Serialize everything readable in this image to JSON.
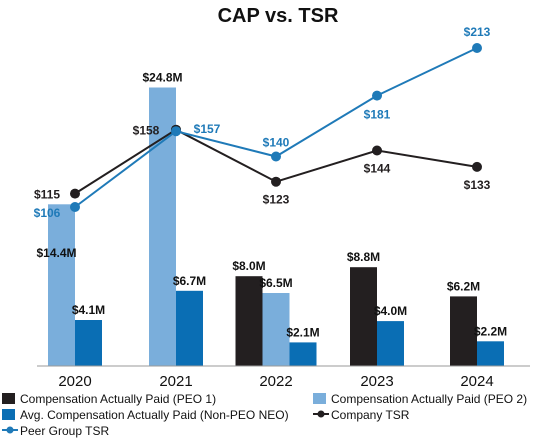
{
  "chart_data": {
    "type": "bar",
    "title": "CAP vs. TSR",
    "categories": [
      "2020",
      "2021",
      "2022",
      "2023",
      "2024"
    ],
    "bar_axis": {
      "unit": "$M",
      "ylim": [
        0,
        28
      ]
    },
    "tsr_axis": {
      "ylim": [
        0,
        240
      ]
    },
    "bar_series": [
      {
        "key": "peo1",
        "name": "Compensation Actually Paid (PEO 1)",
        "color": "#231f20",
        "values": [
          null,
          null,
          8.0,
          8.8,
          6.2
        ],
        "labels": [
          null,
          null,
          "$8.0M",
          "$8.8M",
          "$6.2M"
        ]
      },
      {
        "key": "peo2",
        "name": "Compensation Actually Paid (PEO 2)",
        "color": "#7aaedb",
        "values": [
          14.4,
          24.8,
          6.5,
          null,
          null
        ],
        "labels": [
          "$14.4M",
          "$24.8M",
          "$6.5M",
          null,
          null
        ]
      },
      {
        "key": "neo",
        "name": "Avg. Compensation Actually Paid (Non-PEO NEO)",
        "color": "#0a6eb4",
        "values": [
          4.1,
          6.7,
          2.1,
          4.0,
          2.2
        ],
        "labels": [
          "$4.1M",
          "$6.7M",
          "$2.1M",
          "$4.0M",
          "$2.2M"
        ]
      }
    ],
    "line_series": [
      {
        "key": "company_tsr",
        "name": "Company TSR",
        "color": "#231f20",
        "values": [
          115,
          158,
          123,
          144,
          133
        ],
        "labels": [
          "$115",
          "$158",
          "$123",
          "$144",
          "$133"
        ]
      },
      {
        "key": "peer_tsr",
        "name": "Peer Group TSR",
        "color": "#1f7ab8",
        "values": [
          106,
          157,
          140,
          181,
          213
        ],
        "labels": [
          "$106",
          "$157",
          "$140",
          "$181",
          "$213"
        ]
      }
    ],
    "legend_position": "bottom",
    "grid": false
  }
}
